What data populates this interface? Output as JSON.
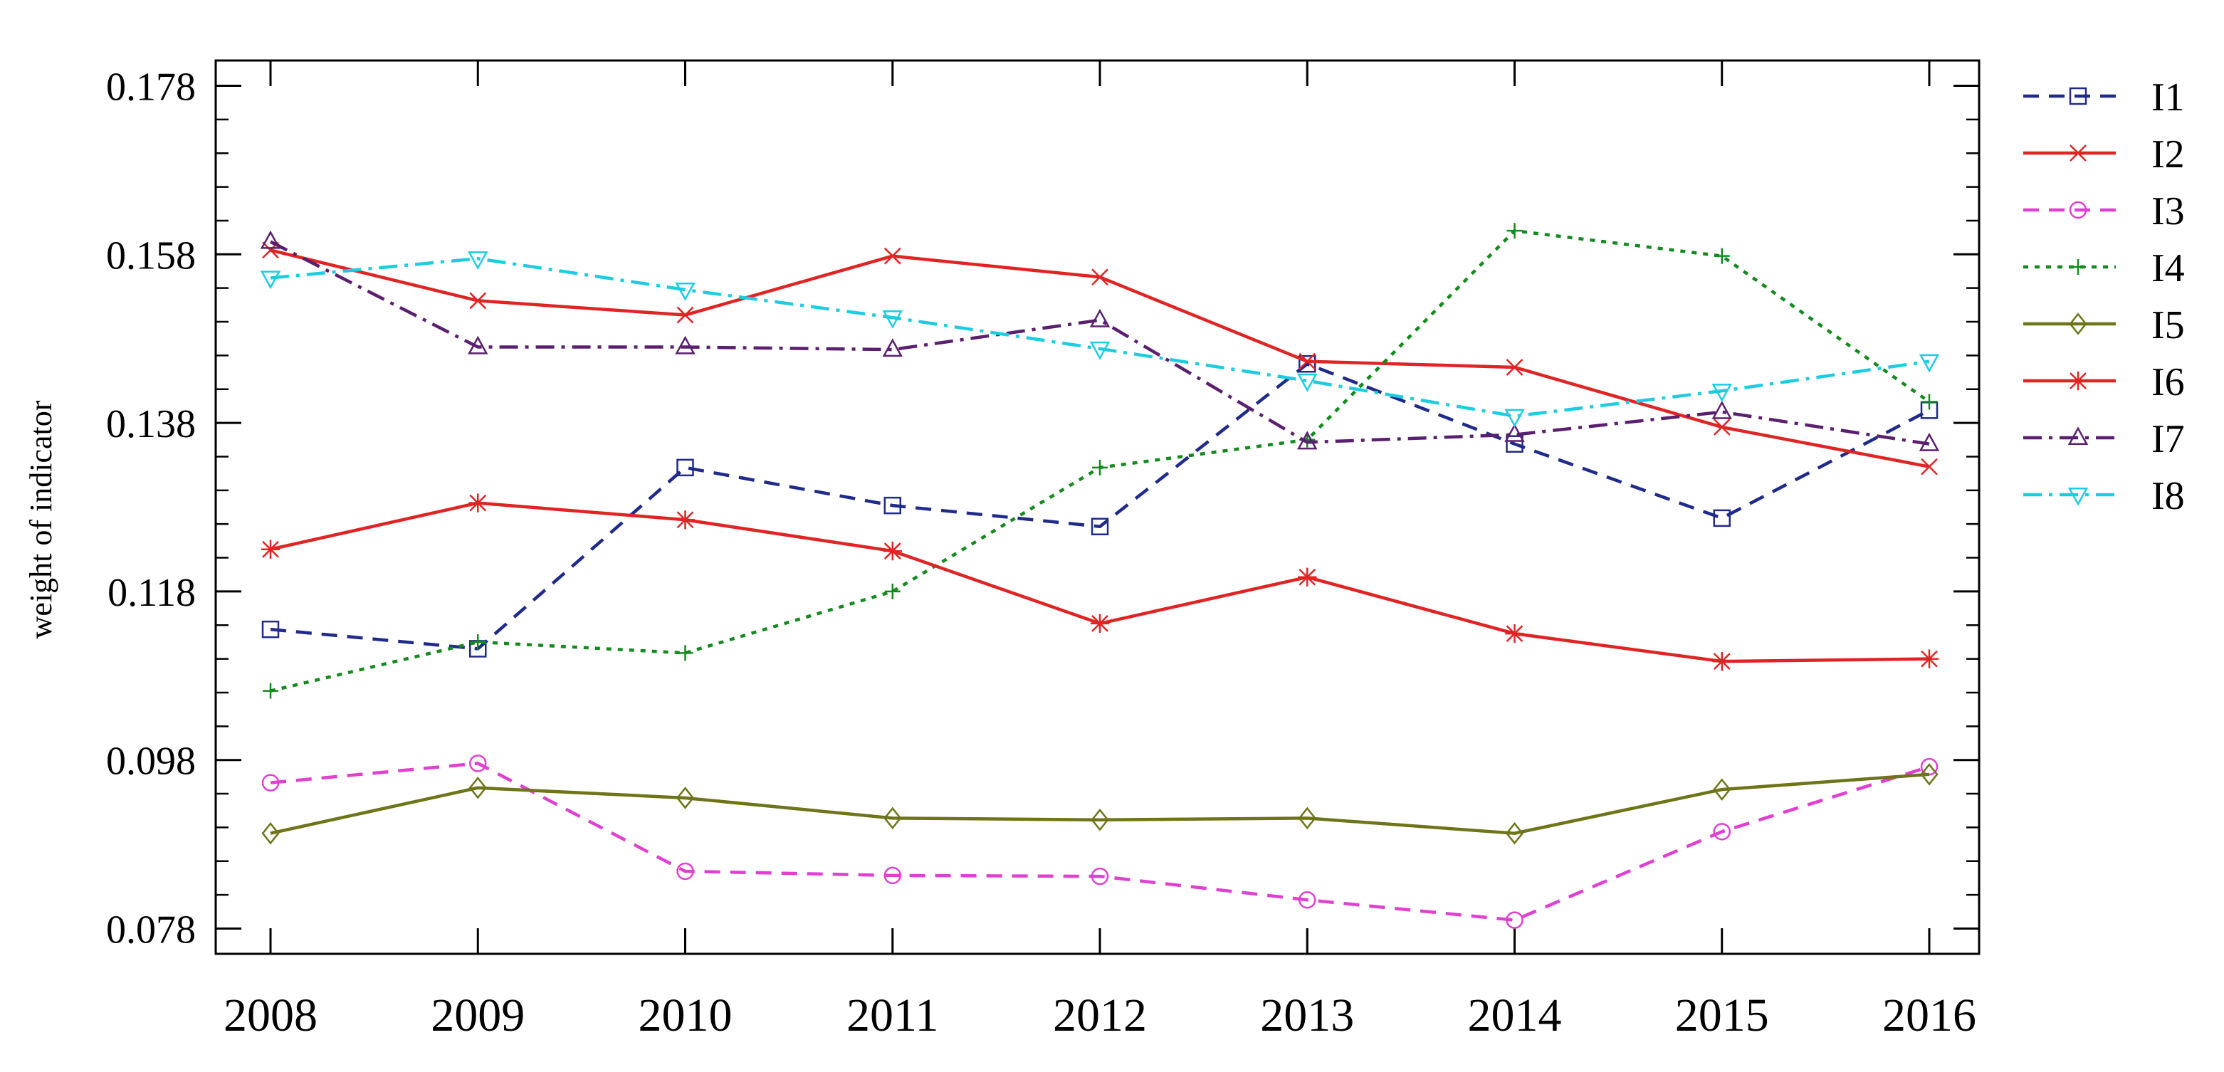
{
  "chart_data": {
    "type": "line",
    "title": "",
    "xlabel": "",
    "ylabel": "weight of indicator",
    "x": [
      "2008",
      "2009",
      "2010",
      "2011",
      "2012",
      "2013",
      "2014",
      "2015",
      "2016"
    ],
    "ylim": [
      0.075,
      0.181
    ],
    "yticks": [
      "0.078",
      "0.098",
      "0.118",
      "0.138",
      "0.158",
      "0.178"
    ],
    "grid": false,
    "legend_position": "right",
    "series": [
      {
        "name": "I1",
        "color": "#1f2a8a",
        "dash": "dashed",
        "marker": "square",
        "values": [
          0.1135,
          0.1112,
          0.1327,
          0.1282,
          0.1257,
          0.145,
          0.1355,
          0.1267,
          0.1395
        ]
      },
      {
        "name": "I2",
        "color": "#e02424",
        "dash": "solid",
        "marker": "x",
        "values": [
          0.1585,
          0.1525,
          0.1508,
          0.1578,
          0.1553,
          0.1453,
          0.1446,
          0.1375,
          0.1328
        ]
      },
      {
        "name": "I3",
        "color": "#e040d0",
        "dash": "dashed",
        "marker": "circle",
        "values": [
          0.0953,
          0.0976,
          0.0848,
          0.0843,
          0.0842,
          0.0814,
          0.079,
          0.0895,
          0.0972
        ]
      },
      {
        "name": "I4",
        "color": "#148a1e",
        "dash": "dotted",
        "marker": "plus",
        "values": [
          0.1062,
          0.112,
          0.1107,
          0.118,
          0.1327,
          0.136,
          0.1608,
          0.1578,
          0.1405
        ]
      },
      {
        "name": "I5",
        "color": "#6e7418",
        "dash": "solid",
        "marker": "diamond",
        "values": [
          0.0893,
          0.0947,
          0.0935,
          0.0911,
          0.0909,
          0.0911,
          0.0893,
          0.0945,
          0.0963
        ]
      },
      {
        "name": "I6",
        "color": "#e02424",
        "dash": "solid",
        "marker": "star",
        "values": [
          0.123,
          0.1285,
          0.1265,
          0.1228,
          0.1142,
          0.1197,
          0.113,
          0.1097,
          0.11
        ]
      },
      {
        "name": "I7",
        "color": "#5a1f6e",
        "dash": "dashdot",
        "marker": "triangle-up",
        "values": [
          0.1595,
          0.147,
          0.147,
          0.1467,
          0.1502,
          0.1357,
          0.1366,
          0.1393,
          0.1355
        ]
      },
      {
        "name": "I8",
        "color": "#1ecce0",
        "dash": "dashdot",
        "marker": "triangle-down",
        "values": [
          0.1552,
          0.1575,
          0.1538,
          0.1505,
          0.1468,
          0.143,
          0.1388,
          0.1418,
          0.1453
        ]
      }
    ]
  }
}
